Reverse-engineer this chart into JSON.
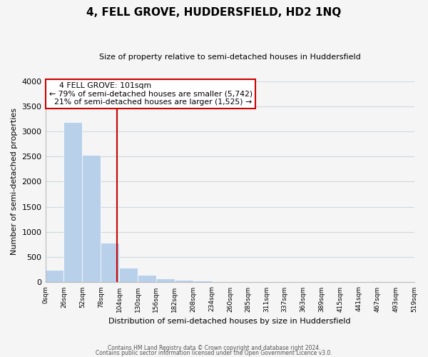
{
  "title": "4, FELL GROVE, HUDDERSFIELD, HD2 1NQ",
  "subtitle": "Size of property relative to semi-detached houses in Huddersfield",
  "xlabel": "Distribution of semi-detached houses by size in Huddersfield",
  "ylabel": "Number of semi-detached properties",
  "footnote1": "Contains HM Land Registry data © Crown copyright and database right 2024.",
  "footnote2": "Contains public sector information licensed under the Open Government Licence v3.0.",
  "bin_edges": [
    0,
    26,
    52,
    78,
    104,
    130,
    156,
    182,
    208,
    234,
    260,
    285,
    311,
    337,
    363,
    389,
    415,
    441,
    467,
    493,
    519
  ],
  "bar_heights": [
    250,
    3190,
    2530,
    790,
    290,
    150,
    80,
    50,
    30,
    0,
    0,
    0,
    0,
    0,
    0,
    0,
    0,
    0,
    0,
    0
  ],
  "bar_color": "#b8d0ea",
  "property_value": 101,
  "property_label": "4 FELL GROVE: 101sqm",
  "pct_smaller": 79,
  "count_smaller": 5742,
  "pct_larger": 21,
  "count_larger": 1525,
  "vline_color": "#cc0000",
  "annotation_box_edge_color": "#cc0000",
  "ylim": [
    0,
    4000
  ],
  "yticks": [
    0,
    500,
    1000,
    1500,
    2000,
    2500,
    3000,
    3500,
    4000
  ],
  "xtick_labels": [
    "0sqm",
    "26sqm",
    "52sqm",
    "78sqm",
    "104sqm",
    "130sqm",
    "156sqm",
    "182sqm",
    "208sqm",
    "234sqm",
    "260sqm",
    "285sqm",
    "311sqm",
    "337sqm",
    "363sqm",
    "389sqm",
    "415sqm",
    "441sqm",
    "467sqm",
    "493sqm",
    "519sqm"
  ],
  "grid_color": "#d0d8e0",
  "bg_color": "#f5f5f5"
}
